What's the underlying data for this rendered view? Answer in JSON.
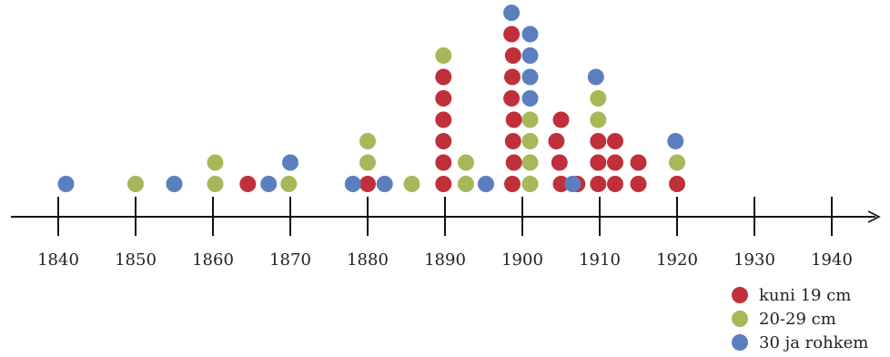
{
  "chart_data": {
    "type": "scatter",
    "title": "",
    "xlabel": "",
    "ylabel": "",
    "xlim": [
      1834,
      1950
    ],
    "x_ticks": [
      1840,
      1850,
      1860,
      1870,
      1880,
      1890,
      1900,
      1910,
      1920,
      1930,
      1940
    ],
    "grid": false,
    "legend_position": "bottom-right",
    "series": [
      {
        "name": "kuni 19 cm",
        "color": "#c0303a",
        "points": [
          [
            1864.5,
            1
          ],
          [
            1880,
            1
          ],
          [
            1889.8,
            1
          ],
          [
            1889.8,
            2
          ],
          [
            1889.8,
            3
          ],
          [
            1889.8,
            4
          ],
          [
            1889.8,
            5
          ],
          [
            1889.8,
            6
          ],
          [
            1898.7,
            1
          ],
          [
            1898.9,
            2
          ],
          [
            1898.8,
            3
          ],
          [
            1898.9,
            4
          ],
          [
            1898.6,
            5
          ],
          [
            1898.7,
            6
          ],
          [
            1898.8,
            7
          ],
          [
            1898.6,
            8
          ],
          [
            1905,
            1
          ],
          [
            1904.8,
            2
          ],
          [
            1904.4,
            3
          ],
          [
            1905,
            4
          ],
          [
            1907.1,
            1
          ],
          [
            1909.8,
            1
          ],
          [
            1909.8,
            2
          ],
          [
            1909.8,
            3
          ],
          [
            1912,
            1
          ],
          [
            1912,
            2
          ],
          [
            1912,
            3
          ],
          [
            1915,
            1
          ],
          [
            1915,
            2
          ],
          [
            1920,
            1
          ]
        ]
      },
      {
        "name": "20-29 cm",
        "color": "#a6b85a",
        "points": [
          [
            1850,
            1
          ],
          [
            1860.3,
            1
          ],
          [
            1860.3,
            2
          ],
          [
            1869.8,
            1
          ],
          [
            1880,
            2
          ],
          [
            1880,
            3
          ],
          [
            1885.7,
            1
          ],
          [
            1889.8,
            7
          ],
          [
            1892.7,
            1
          ],
          [
            1892.7,
            2
          ],
          [
            1901,
            1
          ],
          [
            1901,
            2
          ],
          [
            1901,
            3
          ],
          [
            1901,
            4
          ],
          [
            1909.8,
            4
          ],
          [
            1909.8,
            5
          ],
          [
            1920,
            2
          ]
        ]
      },
      {
        "name": "30 ja rohkem",
        "color": "#5b7fbe",
        "points": [
          [
            1841,
            1
          ],
          [
            1855,
            1
          ],
          [
            1867.2,
            1
          ],
          [
            1870,
            2
          ],
          [
            1878.1,
            1
          ],
          [
            1882.2,
            1
          ],
          [
            1895.3,
            1
          ],
          [
            1898.6,
            9
          ],
          [
            1901,
            5
          ],
          [
            1901,
            6
          ],
          [
            1901,
            7
          ],
          [
            1901,
            8
          ],
          [
            1906.5,
            1
          ],
          [
            1909.5,
            6
          ],
          [
            1919.8,
            3
          ]
        ]
      }
    ]
  }
}
